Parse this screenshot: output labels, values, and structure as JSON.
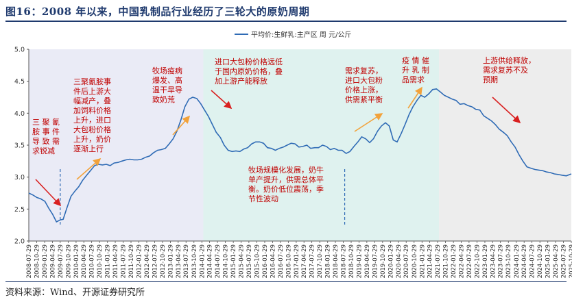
{
  "title": "图16：2008 年以来，中国乳制品行业经历了三轮大的原奶周期",
  "source": "资料来源：Wind、开源证券研究所",
  "chart_data": {
    "type": "line",
    "ylim": [
      2.0,
      5.0
    ],
    "yticks": [
      "2.0",
      "2.5",
      "3.0",
      "3.5",
      "4.0",
      "4.5",
      "5.0"
    ],
    "x_start": "2008-07-29",
    "x_end": "2025-10-29",
    "xticks": [
      "2008-07-29",
      "2008-10-29",
      "2009-01-29",
      "2009-04-29",
      "2009-07-29",
      "2009-10-29",
      "2010-01-29",
      "2010-04-29",
      "2010-07-29",
      "2010-10-29",
      "2011-01-29",
      "2011-04-29",
      "2011-07-29",
      "2011-10-29",
      "2012-01-29",
      "2012-04-29",
      "2012-07-29",
      "2012-10-29",
      "2013-01-29",
      "2013-04-29",
      "2013-07-29",
      "2013-10-29",
      "2014-01-29",
      "2014-04-29",
      "2014-07-29",
      "2014-10-29",
      "2015-01-29",
      "2015-04-29",
      "2015-07-29",
      "2015-10-29",
      "2016-01-29",
      "2016-04-29",
      "2016-07-29",
      "2016-10-29",
      "2017-01-29",
      "2017-04-29",
      "2017-07-29",
      "2017-10-29",
      "2018-01-29",
      "2018-04-29",
      "2018-07-29",
      "2018-10-29",
      "2019-01-29",
      "2019-04-29",
      "2019-07-29",
      "2019-10-29",
      "2020-01-29",
      "2020-04-29",
      "2020-07-29",
      "2020-10-29",
      "2021-01-29",
      "2021-04-29",
      "2021-07-29",
      "2021-10-29",
      "2022-01-29",
      "2022-04-29",
      "2022-07-29",
      "2022-10-29",
      "2023-01-29",
      "2023-04-29",
      "2023-07-29",
      "2023-10-29",
      "2024-01-29",
      "2024-04-29",
      "2024-07-29",
      "2024-10-29",
      "2025-01-29",
      "2025-04-29",
      "2025-07-29",
      "2025-10-29"
    ],
    "series": [
      {
        "name": "平均价:生鲜乳:主产区 周 元/公斤",
        "color": "#2f6bb5",
        "x": [
          "2008-07-29",
          "2008-09-15",
          "2008-11-01",
          "2008-12-15",
          "2009-02-01",
          "2009-03-15",
          "2009-05-01",
          "2009-06-15",
          "2009-07-29",
          "2009-09-01",
          "2009-10-15",
          "2009-12-01",
          "2010-01-15",
          "2010-03-01",
          "2010-04-15",
          "2010-06-01",
          "2010-07-15",
          "2010-09-01",
          "2010-10-15",
          "2010-12-01",
          "2011-01-15",
          "2011-03-01",
          "2011-04-15",
          "2011-06-01",
          "2011-07-15",
          "2011-09-01",
          "2011-10-15",
          "2011-12-01",
          "2012-01-15",
          "2012-03-01",
          "2012-04-15",
          "2012-06-01",
          "2012-07-15",
          "2012-09-01",
          "2012-10-15",
          "2012-12-01",
          "2013-01-15",
          "2013-03-01",
          "2013-04-15",
          "2013-06-01",
          "2013-07-15",
          "2013-09-01",
          "2013-10-15",
          "2013-12-01",
          "2014-01-15",
          "2014-03-01",
          "2014-04-15",
          "2014-06-01",
          "2014-07-15",
          "2014-09-01",
          "2014-10-15",
          "2014-12-01",
          "2015-01-15",
          "2015-03-01",
          "2015-04-15",
          "2015-06-01",
          "2015-07-15",
          "2015-09-01",
          "2015-10-15",
          "2015-12-01",
          "2016-01-15",
          "2016-03-01",
          "2016-04-15",
          "2016-06-01",
          "2016-07-15",
          "2016-09-01",
          "2016-10-15",
          "2016-12-01",
          "2017-01-15",
          "2017-03-01",
          "2017-04-15",
          "2017-06-01",
          "2017-07-15",
          "2017-09-01",
          "2017-10-15",
          "2017-12-01",
          "2018-01-15",
          "2018-03-01",
          "2018-04-15",
          "2018-06-01",
          "2018-07-15",
          "2018-09-01",
          "2018-10-15",
          "2018-12-01",
          "2019-01-15",
          "2019-03-01",
          "2019-04-15",
          "2019-06-01",
          "2019-07-15",
          "2019-09-01",
          "2019-10-15",
          "2019-12-01",
          "2020-01-15",
          "2020-03-01",
          "2020-04-15",
          "2020-06-01",
          "2020-07-15",
          "2020-09-01",
          "2020-10-15",
          "2020-12-01",
          "2021-01-15",
          "2021-03-01",
          "2021-04-15",
          "2021-06-01",
          "2021-07-15",
          "2021-09-01",
          "2021-10-15",
          "2021-12-01",
          "2022-01-15",
          "2022-03-01",
          "2022-04-15",
          "2022-06-01",
          "2022-07-15",
          "2022-09-01",
          "2022-10-15",
          "2022-12-01",
          "2023-01-15",
          "2023-03-01",
          "2023-04-15",
          "2023-06-01",
          "2023-07-15",
          "2023-09-01",
          "2023-10-15",
          "2023-12-01",
          "2024-01-15",
          "2024-03-01",
          "2024-04-15",
          "2024-06-01",
          "2024-07-15",
          "2024-09-01",
          "2024-10-15",
          "2024-12-01",
          "2025-01-15",
          "2025-03-01",
          "2025-04-15",
          "2025-06-01",
          "2025-07-15",
          "2025-09-01",
          "2025-10-29"
        ],
        "y": [
          2.75,
          2.72,
          2.68,
          2.66,
          2.62,
          2.52,
          2.42,
          2.3,
          2.33,
          2.34,
          2.52,
          2.7,
          2.78,
          2.85,
          2.95,
          3.03,
          3.1,
          3.18,
          3.2,
          3.19,
          3.2,
          3.18,
          3.22,
          3.23,
          3.25,
          3.27,
          3.28,
          3.27,
          3.27,
          3.28,
          3.31,
          3.33,
          3.38,
          3.42,
          3.43,
          3.45,
          3.52,
          3.6,
          3.72,
          3.9,
          4.1,
          4.22,
          4.25,
          4.23,
          4.15,
          4.05,
          3.95,
          3.82,
          3.7,
          3.62,
          3.5,
          3.42,
          3.4,
          3.41,
          3.4,
          3.44,
          3.46,
          3.52,
          3.55,
          3.55,
          3.53,
          3.46,
          3.45,
          3.42,
          3.45,
          3.47,
          3.5,
          3.53,
          3.52,
          3.47,
          3.48,
          3.5,
          3.45,
          3.46,
          3.46,
          3.5,
          3.48,
          3.43,
          3.45,
          3.42,
          3.42,
          3.37,
          3.4,
          3.48,
          3.55,
          3.63,
          3.6,
          3.54,
          3.6,
          3.72,
          3.8,
          3.85,
          3.8,
          3.58,
          3.55,
          3.68,
          3.82,
          3.98,
          4.1,
          4.2,
          4.28,
          4.25,
          4.3,
          4.37,
          4.38,
          4.33,
          4.28,
          4.25,
          4.22,
          4.2,
          4.14,
          4.15,
          4.12,
          4.1,
          4.06,
          4.05,
          3.96,
          3.92,
          3.88,
          3.82,
          3.75,
          3.7,
          3.65,
          3.55,
          3.47,
          3.35,
          3.25,
          3.16,
          3.14,
          3.12,
          3.11,
          3.1,
          3.08,
          3.07,
          3.05,
          3.04,
          3.03,
          3.02,
          3.05
        ]
      }
    ],
    "vlines": [
      "2009-07-29",
      "2018-08-15"
    ],
    "regions": [
      {
        "from": "2008-07-29",
        "to": "2014-02-15",
        "color": "#eaebf6"
      },
      {
        "from": "2014-02-15",
        "to": "2021-08-15",
        "color": "#dff2ef"
      },
      {
        "from": "2021-08-15",
        "to": "2025-10-29",
        "color": "#ededed"
      }
    ],
    "annotations": [
      {
        "lines": [
          "三 聚 氰",
          "胺 事 件",
          "导 致 需",
          "求锐减"
        ],
        "color": "#c00000"
      },
      {
        "lines": [
          "三聚氰胺事",
          "件后上游大",
          "幅减产，叠",
          "加饲料价格",
          "上升，进口",
          "大包粉价格",
          "上升，奶价",
          "逐渐上行"
        ],
        "color": "#c00000"
      },
      {
        "lines": [
          "牧场疫病",
          "爆发、高",
          "温干旱导",
          "致奶荒"
        ],
        "color": "#c00000"
      },
      {
        "lines": [
          "进口大包粉价格远低",
          "于国内原奶价格，叠",
          "加上游产能释放"
        ],
        "color": "#c00000"
      },
      {
        "lines": [
          "牧场规模化发展，奶牛",
          "单产提升，供需总体平",
          "衡。奶价低位震荡，季",
          "节性波动"
        ],
        "color": "#c00000"
      },
      {
        "lines": [
          "需求复苏，",
          "进口大包粉",
          "价格上涨，",
          "供需紧平衡"
        ],
        "color": "#c00000"
      },
      {
        "lines": [
          "疫 情 催",
          "升 乳 制",
          "品需求"
        ],
        "color": "#c00000"
      },
      {
        "lines": [
          "上游供给释放，",
          "需求复苏不及",
          "预期"
        ],
        "color": "#c00000"
      }
    ],
    "legend_position": "top-center",
    "grid": false
  }
}
